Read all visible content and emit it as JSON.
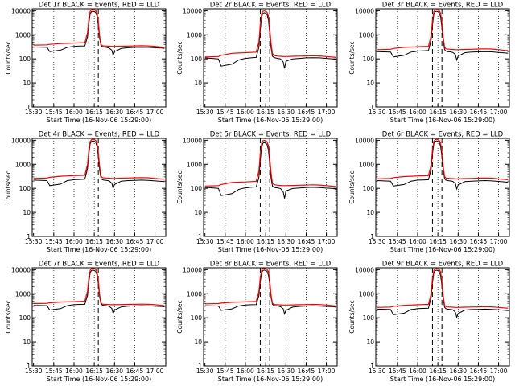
{
  "chart_data": {
    "type": "line",
    "layout": "3x3 grid",
    "xlabel": "Start Time (16-Nov-06 15:29:00)",
    "ylabel": "Counts/sec",
    "x_tick_labels": [
      "15:30",
      "15:45",
      "16:00",
      "16:15",
      "16:30",
      "16:45",
      "17:00"
    ],
    "x_ticks_minutes_after_1530": [
      0,
      15,
      30,
      45,
      60,
      75,
      90
    ],
    "xlim_minutes_after_1530": [
      -1,
      98
    ],
    "y_scale": "log",
    "ylim": [
      1,
      12000
    ],
    "y_tick_labels": [
      "1",
      "10",
      "100",
      "1000",
      "10000"
    ],
    "y_ticks": [
      1,
      10,
      100,
      1000,
      10000
    ],
    "grid": "dotted vertical lines at x ticks",
    "dashed_markers_minutes_after_1530": [
      41,
      48
    ],
    "colors": {
      "black_series": "#000000",
      "red_series": "#ff0000",
      "frame": "#000000",
      "background": "#ffffff"
    },
    "series_x_minutes_after_1530": [
      0,
      10,
      12,
      20,
      25,
      28,
      30,
      34,
      38,
      40,
      41,
      42,
      43,
      44,
      45,
      46,
      47,
      48,
      49,
      50,
      51,
      52,
      54,
      56,
      58,
      59,
      60,
      65,
      70,
      75,
      80,
      85,
      90,
      95,
      97
    ],
    "panels": [
      {
        "title": "Det 1r BLACK = Events, RED = LLD",
        "black": [
          310,
          300,
          200,
          230,
          300,
          320,
          330,
          340,
          345,
          800,
          3000,
          7500,
          9200,
          9600,
          9200,
          8600,
          6000,
          2500,
          700,
          360,
          320,
          310,
          300,
          280,
          230,
          140,
          200,
          270,
          290,
          300,
          305,
          300,
          290,
          280,
          270
        ],
        "red": [
          370,
          380,
          400,
          430,
          440,
          445,
          450,
          460,
          470,
          1200,
          4500,
          9500,
          11000,
          11200,
          10800,
          10200,
          8500,
          3500,
          900,
          400,
          350,
          345,
          340,
          335,
          330,
          330,
          330,
          335,
          340,
          345,
          350,
          345,
          330,
          310,
          300
        ]
      },
      {
        "title": "Det 2r BLACK = Events, RED = LLD",
        "black": [
          110,
          100,
          50,
          60,
          90,
          100,
          105,
          110,
          115,
          300,
          1500,
          5500,
          7800,
          8200,
          7800,
          7000,
          4200,
          1200,
          300,
          130,
          115,
          110,
          105,
          100,
          75,
          40,
          80,
          100,
          105,
          110,
          112,
          110,
          105,
          100,
          95
        ],
        "red": [
          120,
          125,
          140,
          170,
          175,
          178,
          180,
          185,
          190,
          500,
          2500,
          7500,
          9500,
          9800,
          9400,
          8600,
          6000,
          1800,
          450,
          170,
          140,
          135,
          130,
          128,
          125,
          125,
          125,
          128,
          130,
          132,
          135,
          132,
          125,
          118,
          115
        ]
      },
      {
        "title": "Det 3r BLACK = Events, RED = LLD",
        "black": [
          200,
          190,
          120,
          140,
          190,
          200,
          210,
          215,
          220,
          600,
          2500,
          7000,
          9000,
          9400,
          9000,
          8200,
          5500,
          2000,
          550,
          240,
          210,
          200,
          195,
          185,
          150,
          90,
          130,
          180,
          190,
          195,
          200,
          195,
          185,
          175,
          170
        ],
        "red": [
          240,
          250,
          270,
          300,
          310,
          315,
          320,
          325,
          330,
          900,
          3800,
          9000,
          10600,
          10900,
          10500,
          9800,
          8000,
          3000,
          800,
          300,
          260,
          255,
          250,
          245,
          240,
          240,
          240,
          245,
          250,
          255,
          260,
          255,
          240,
          225,
          220
        ]
      },
      {
        "title": "Det 4r BLACK = Events, RED = LLD",
        "black": [
          220,
          210,
          130,
          150,
          210,
          220,
          230,
          235,
          240,
          650,
          2700,
          7200,
          9100,
          9500,
          9100,
          8300,
          5600,
          2100,
          580,
          260,
          230,
          220,
          215,
          205,
          165,
          100,
          145,
          200,
          210,
          215,
          220,
          215,
          205,
          195,
          190
        ],
        "red": [
          260,
          270,
          290,
          320,
          330,
          335,
          340,
          345,
          350,
          950,
          4000,
          9100,
          10700,
          11000,
          10600,
          9900,
          8100,
          3100,
          820,
          320,
          280,
          275,
          270,
          265,
          260,
          260,
          260,
          265,
          270,
          275,
          280,
          275,
          260,
          245,
          240
        ]
      },
      {
        "title": "Det 5r BLACK = Events, RED = LLD",
        "black": [
          110,
          100,
          50,
          60,
          90,
          100,
          105,
          110,
          115,
          280,
          1400,
          5300,
          7600,
          8000,
          7600,
          6800,
          4000,
          1100,
          280,
          125,
          112,
          108,
          104,
          98,
          72,
          38,
          78,
          98,
          103,
          108,
          110,
          108,
          102,
          98,
          92
        ],
        "red": [
          125,
          130,
          145,
          175,
          180,
          183,
          185,
          190,
          195,
          520,
          2600,
          7600,
          9600,
          9900,
          9500,
          8700,
          6100,
          1850,
          460,
          175,
          145,
          140,
          135,
          132,
          130,
          130,
          130,
          132,
          135,
          137,
          140,
          137,
          130,
          122,
          118
        ]
      },
      {
        "title": "Det 6r BLACK = Events, RED = LLD",
        "black": [
          210,
          200,
          125,
          145,
          200,
          210,
          220,
          225,
          230,
          620,
          2600,
          7100,
          9050,
          9450,
          9050,
          8250,
          5550,
          2050,
          560,
          250,
          220,
          210,
          205,
          195,
          158,
          95,
          138,
          190,
          200,
          205,
          210,
          205,
          195,
          185,
          180
        ],
        "red": [
          250,
          260,
          280,
          310,
          320,
          325,
          330,
          335,
          340,
          920,
          3900,
          9050,
          10650,
          10950,
          10550,
          9850,
          8050,
          3050,
          810,
          310,
          270,
          265,
          260,
          255,
          250,
          250,
          250,
          255,
          260,
          265,
          270,
          265,
          250,
          235,
          230
        ]
      },
      {
        "title": "Det 7r BLACK = Events, RED = LLD",
        "black": [
          330,
          320,
          210,
          240,
          320,
          340,
          350,
          360,
          365,
          850,
          3100,
          7600,
          9250,
          9650,
          9250,
          8650,
          6100,
          2600,
          720,
          380,
          340,
          330,
          320,
          300,
          245,
          150,
          210,
          285,
          305,
          315,
          320,
          315,
          305,
          295,
          285
        ],
        "red": [
          390,
          400,
          420,
          450,
          460,
          465,
          470,
          480,
          490,
          1250,
          4600,
          9600,
          11050,
          11250,
          10850,
          10250,
          8550,
          3550,
          920,
          420,
          370,
          365,
          360,
          355,
          350,
          350,
          350,
          355,
          360,
          365,
          370,
          365,
          350,
          330,
          320
        ]
      },
      {
        "title": "Det 8r BLACK = Events, RED = LLD",
        "black": [
          320,
          310,
          205,
          235,
          310,
          330,
          340,
          350,
          355,
          830,
          3050,
          7550,
          9220,
          9620,
          9220,
          8620,
          6050,
          2550,
          710,
          370,
          330,
          320,
          310,
          290,
          238,
          145,
          205,
          278,
          298,
          308,
          312,
          308,
          298,
          288,
          278
        ],
        "red": [
          380,
          390,
          410,
          440,
          450,
          455,
          460,
          470,
          480,
          1220,
          4550,
          9550,
          11020,
          11220,
          10820,
          10220,
          8520,
          3520,
          910,
          410,
          360,
          355,
          350,
          345,
          340,
          340,
          340,
          345,
          350,
          355,
          360,
          355,
          340,
          320,
          310
        ]
      },
      {
        "title": "Det 9r BLACK = Events, RED = LLD",
        "black": [
          230,
          220,
          135,
          155,
          220,
          230,
          240,
          245,
          250,
          680,
          2800,
          7300,
          9150,
          9550,
          9150,
          8350,
          5650,
          2150,
          590,
          270,
          240,
          230,
          225,
          215,
          172,
          105,
          150,
          210,
          220,
          225,
          230,
          225,
          215,
          205,
          200
        ],
        "red": [
          270,
          280,
          300,
          330,
          340,
          345,
          350,
          355,
          360,
          980,
          4100,
          9150,
          10750,
          11050,
          10650,
          9950,
          8150,
          3150,
          830,
          330,
          290,
          285,
          280,
          275,
          270,
          270,
          270,
          275,
          280,
          285,
          290,
          285,
          270,
          255,
          250
        ]
      }
    ]
  }
}
